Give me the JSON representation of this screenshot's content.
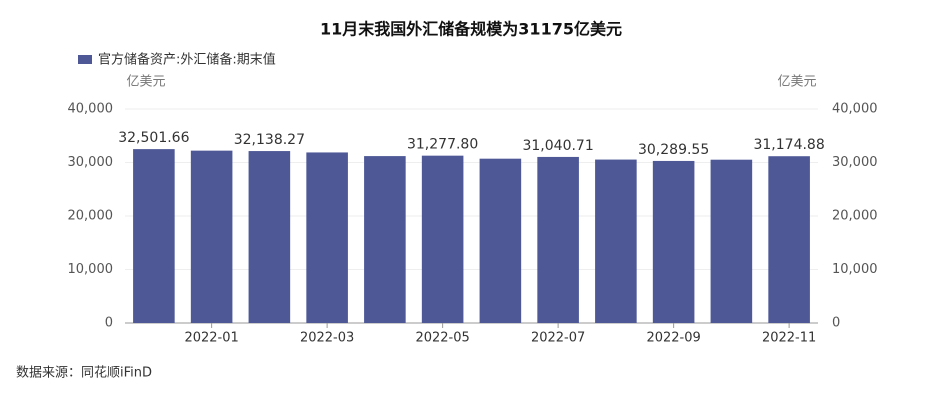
{
  "chart_data": {
    "type": "bar",
    "title": "11月末我国外汇储备规模为31175亿美元",
    "categories": [
      null,
      "2022-01",
      null,
      "2022-03",
      null,
      "2022-05",
      null,
      "2022-07",
      null,
      "2022-09",
      null,
      "2022-11"
    ],
    "series": [
      {
        "name": "官方储备资产:外汇储备:期末值",
        "color": "#4e5897",
        "values": [
          32501.66,
          32216,
          32138.27,
          31880,
          31197,
          31277.8,
          30713,
          31040.71,
          30549,
          30289.55,
          30524,
          31174.88
        ],
        "value_labels": [
          "32,501.66",
          null,
          "32,138.27",
          null,
          null,
          "31,277.80",
          null,
          "31,040.71",
          null,
          "30,289.55",
          null,
          "31,174.88"
        ]
      }
    ],
    "y_label": "亿美元",
    "y2_label": "亿美元",
    "ylim": [
      0,
      40000
    ],
    "yticks": [
      0,
      {
        "value": 10000,
        "label": "10,000"
      },
      {
        "value": 20000,
        "label": "20,000"
      },
      {
        "value": 30000,
        "label": "30,000"
      },
      {
        "value": 40000,
        "label": "40,000"
      }
    ],
    "y2lim": [
      0,
      40000
    ],
    "y2ticks": [
      0,
      {
        "value": 10000,
        "label": "10,000"
      },
      {
        "value": 20000,
        "label": "20,000"
      },
      {
        "value": 30000,
        "label": "30,000"
      },
      {
        "value": 40000,
        "label": "40,000"
      }
    ],
    "grid": true,
    "legend": "top-left",
    "source": "数据来源：同花顺iFinD"
  }
}
